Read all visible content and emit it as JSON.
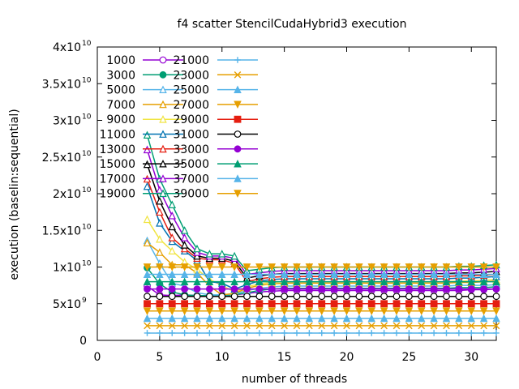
{
  "chart_data": {
    "type": "line",
    "title": "f4 scatter StencilCudaHybrid3 execution",
    "xlabel": "number of threads",
    "ylabel": "execution (baselin:sequential)",
    "xlim": [
      0,
      32
    ],
    "ylim": [
      0,
      40000000000
    ],
    "x_ticks": [
      0,
      5,
      10,
      15,
      20,
      25,
      30
    ],
    "y_ticks": [
      {
        "value": 0,
        "mantissa": "0",
        "exp": ""
      },
      {
        "value": 5000000000,
        "mantissa": "5x10",
        "exp": "9"
      },
      {
        "value": 10000000000,
        "mantissa": "1x10",
        "exp": "10"
      },
      {
        "value": 15000000000,
        "mantissa": "1.5x10",
        "exp": "10"
      },
      {
        "value": 20000000000,
        "mantissa": "2x10",
        "exp": "10"
      },
      {
        "value": 25000000000,
        "mantissa": "2.5x10",
        "exp": "10"
      },
      {
        "value": 30000000000,
        "mantissa": "3x10",
        "exp": "10"
      },
      {
        "value": 35000000000,
        "mantissa": "3.5x10",
        "exp": "10"
      },
      {
        "value": 40000000000,
        "mantissa": "4x10",
        "exp": "10"
      }
    ],
    "legend_position": "top-left",
    "grid": false,
    "x": [
      4,
      5,
      6,
      7,
      8,
      9,
      10,
      11,
      12,
      13,
      14,
      15,
      16,
      17,
      18,
      19,
      20,
      21,
      22,
      23,
      24,
      25,
      26,
      27,
      28,
      29,
      30,
      31,
      32
    ],
    "series": [
      {
        "name": "1000",
        "color": "#9400d3",
        "marker": "circle-open",
        "values": [
          0.74,
          0.62,
          0.61,
          0.62,
          0.61,
          0.61,
          0.62,
          0.62,
          0.64,
          0.66,
          0.67,
          0.68,
          0.68,
          0.68,
          0.68,
          0.68,
          0.68,
          0.68,
          0.68,
          0.68,
          0.68,
          0.68,
          0.68,
          0.68,
          0.68,
          0.68,
          0.69,
          0.69,
          0.7
        ]
      },
      {
        "name": "3000",
        "color": "#009e73",
        "marker": "circle",
        "values": [
          0.99,
          0.77,
          0.66,
          0.62,
          0.61,
          0.61,
          0.61,
          0.62,
          0.65,
          0.68,
          0.7,
          0.71,
          0.71,
          0.71,
          0.71,
          0.71,
          0.71,
          0.71,
          0.71,
          0.71,
          0.71,
          0.71,
          0.71,
          0.71,
          0.71,
          0.72,
          0.72,
          0.72,
          0.73
        ]
      },
      {
        "name": "5000",
        "color": "#56b4e9",
        "marker": "triangle-open",
        "values": [
          1.36,
          1.05,
          0.78,
          0.74,
          0.65,
          0.62,
          0.62,
          0.63,
          0.68,
          0.71,
          0.73,
          0.74,
          0.74,
          0.74,
          0.74,
          0.74,
          0.74,
          0.74,
          0.74,
          0.74,
          0.74,
          0.74,
          0.74,
          0.74,
          0.74,
          0.75,
          0.75,
          0.75,
          0.76
        ]
      },
      {
        "name": "7000",
        "color": "#e69f00",
        "marker": "triangle-open",
        "values": [
          1.33,
          1.2,
          1.03,
          1.03,
          0.92,
          0.74,
          0.62,
          0.64,
          0.71,
          0.75,
          0.77,
          0.78,
          0.78,
          0.78,
          0.78,
          0.78,
          0.78,
          0.78,
          0.78,
          0.78,
          0.78,
          0.78,
          0.78,
          0.78,
          0.78,
          0.79,
          0.79,
          0.8,
          0.81
        ]
      },
      {
        "name": "9000",
        "color": "#f0e442",
        "marker": "triangle-open",
        "values": [
          1.65,
          1.38,
          1.22,
          1.07,
          0.97,
          0.83,
          0.75,
          0.66,
          0.73,
          0.77,
          0.79,
          0.8,
          0.8,
          0.8,
          0.8,
          0.8,
          0.8,
          0.8,
          0.8,
          0.8,
          0.8,
          0.8,
          0.8,
          0.8,
          0.8,
          0.81,
          0.81,
          0.82,
          0.83
        ]
      },
      {
        "name": "11000",
        "color": "#0072b2",
        "marker": "triangle-open",
        "values": [
          2.1,
          1.6,
          1.35,
          1.22,
          1.09,
          0.8,
          0.78,
          0.7,
          0.76,
          0.81,
          0.83,
          0.84,
          0.84,
          0.84,
          0.84,
          0.84,
          0.84,
          0.84,
          0.84,
          0.84,
          0.84,
          0.84,
          0.84,
          0.84,
          0.84,
          0.85,
          0.85,
          0.86,
          0.87
        ]
      },
      {
        "name": "13000",
        "color": "#e51e10",
        "marker": "triangle-open",
        "values": [
          2.2,
          1.75,
          1.4,
          1.25,
          1.12,
          1.1,
          1.1,
          1.05,
          0.8,
          0.84,
          0.86,
          0.87,
          0.87,
          0.87,
          0.87,
          0.87,
          0.87,
          0.87,
          0.87,
          0.87,
          0.87,
          0.87,
          0.87,
          0.87,
          0.87,
          0.88,
          0.88,
          0.89,
          0.9
        ]
      },
      {
        "name": "15000",
        "color": "#000000",
        "marker": "triangle-open",
        "values": [
          2.4,
          1.9,
          1.55,
          1.3,
          1.15,
          1.12,
          1.12,
          1.08,
          0.85,
          0.88,
          0.9,
          0.91,
          0.91,
          0.91,
          0.91,
          0.91,
          0.91,
          0.91,
          0.91,
          0.91,
          0.91,
          0.91,
          0.91,
          0.91,
          0.91,
          0.92,
          0.92,
          0.93,
          0.94
        ]
      },
      {
        "name": "17000",
        "color": "#9400d3",
        "marker": "triangle-open",
        "values": [
          2.6,
          2.05,
          1.7,
          1.4,
          1.2,
          1.15,
          1.15,
          1.12,
          0.9,
          0.92,
          0.94,
          0.95,
          0.95,
          0.95,
          0.95,
          0.95,
          0.95,
          0.95,
          0.95,
          0.95,
          0.95,
          0.95,
          0.95,
          0.95,
          0.95,
          0.96,
          0.96,
          0.97,
          0.98
        ]
      },
      {
        "name": "19000",
        "color": "#009e73",
        "marker": "triangle-open",
        "values": [
          2.8,
          2.2,
          1.85,
          1.5,
          1.25,
          1.18,
          1.18,
          1.15,
          0.95,
          0.97,
          0.99,
          1.0,
          1.0,
          1.0,
          1.0,
          1.0,
          1.0,
          1.0,
          1.0,
          1.0,
          1.0,
          1.0,
          1.0,
          1.0,
          1.0,
          1.01,
          1.01,
          1.02,
          1.03
        ]
      },
      {
        "name": "21000",
        "color": "#56b4e9",
        "marker": "plus",
        "values": [
          0.1,
          0.1,
          0.1,
          0.1,
          0.1,
          0.1,
          0.1,
          0.1,
          0.1,
          0.1,
          0.1,
          0.1,
          0.1,
          0.1,
          0.1,
          0.1,
          0.1,
          0.1,
          0.1,
          0.1,
          0.1,
          0.1,
          0.1,
          0.1,
          0.1,
          0.1,
          0.1,
          0.1,
          0.1
        ]
      },
      {
        "name": "23000",
        "color": "#e69f00",
        "marker": "cross",
        "values": [
          0.2,
          0.2,
          0.2,
          0.2,
          0.2,
          0.2,
          0.2,
          0.2,
          0.2,
          0.2,
          0.2,
          0.2,
          0.2,
          0.2,
          0.2,
          0.2,
          0.2,
          0.2,
          0.2,
          0.2,
          0.2,
          0.2,
          0.2,
          0.2,
          0.2,
          0.2,
          0.2,
          0.2,
          0.2
        ]
      },
      {
        "name": "25000",
        "color": "#56b4e9",
        "marker": "triangle",
        "values": [
          0.3,
          0.3,
          0.3,
          0.3,
          0.3,
          0.3,
          0.3,
          0.3,
          0.3,
          0.3,
          0.3,
          0.3,
          0.3,
          0.3,
          0.3,
          0.3,
          0.3,
          0.3,
          0.3,
          0.3,
          0.3,
          0.3,
          0.3,
          0.3,
          0.3,
          0.3,
          0.3,
          0.3,
          0.3
        ]
      },
      {
        "name": "27000",
        "color": "#e69f00",
        "marker": "triangle-down",
        "values": [
          0.4,
          0.4,
          0.4,
          0.4,
          0.4,
          0.4,
          0.4,
          0.4,
          0.4,
          0.4,
          0.4,
          0.4,
          0.4,
          0.4,
          0.4,
          0.4,
          0.4,
          0.4,
          0.4,
          0.4,
          0.4,
          0.4,
          0.4,
          0.4,
          0.4,
          0.4,
          0.4,
          0.4,
          0.4
        ]
      },
      {
        "name": "29000",
        "color": "#e51e10",
        "marker": "square",
        "values": [
          0.5,
          0.5,
          0.5,
          0.5,
          0.5,
          0.5,
          0.5,
          0.5,
          0.5,
          0.5,
          0.5,
          0.5,
          0.5,
          0.5,
          0.5,
          0.5,
          0.5,
          0.5,
          0.5,
          0.5,
          0.5,
          0.5,
          0.5,
          0.5,
          0.5,
          0.5,
          0.5,
          0.5,
          0.5
        ]
      },
      {
        "name": "31000",
        "color": "#000000",
        "marker": "circle-open",
        "values": [
          0.6,
          0.6,
          0.6,
          0.6,
          0.6,
          0.6,
          0.6,
          0.6,
          0.6,
          0.6,
          0.6,
          0.6,
          0.6,
          0.6,
          0.6,
          0.6,
          0.6,
          0.6,
          0.6,
          0.6,
          0.6,
          0.6,
          0.6,
          0.6,
          0.6,
          0.6,
          0.6,
          0.6,
          0.6
        ]
      },
      {
        "name": "33000",
        "color": "#9400d3",
        "marker": "circle",
        "values": [
          0.7,
          0.7,
          0.7,
          0.7,
          0.7,
          0.7,
          0.7,
          0.7,
          0.7,
          0.7,
          0.7,
          0.7,
          0.7,
          0.7,
          0.7,
          0.7,
          0.7,
          0.7,
          0.7,
          0.7,
          0.7,
          0.7,
          0.7,
          0.7,
          0.7,
          0.7,
          0.7,
          0.7,
          0.7
        ]
      },
      {
        "name": "35000",
        "color": "#009e73",
        "marker": "triangle",
        "values": [
          0.8,
          0.8,
          0.8,
          0.8,
          0.8,
          0.8,
          0.8,
          0.8,
          0.8,
          0.8,
          0.8,
          0.8,
          0.8,
          0.8,
          0.8,
          0.8,
          0.8,
          0.8,
          0.8,
          0.8,
          0.8,
          0.8,
          0.8,
          0.8,
          0.8,
          0.8,
          0.8,
          0.8,
          0.8
        ]
      },
      {
        "name": "37000",
        "color": "#56b4e9",
        "marker": "triangle",
        "values": [
          0.9,
          0.9,
          0.9,
          0.9,
          0.9,
          0.9,
          0.9,
          0.9,
          0.9,
          0.9,
          0.9,
          0.9,
          0.9,
          0.9,
          0.9,
          0.9,
          0.9,
          0.9,
          0.9,
          0.9,
          0.9,
          0.9,
          0.9,
          0.9,
          0.9,
          0.9,
          0.9,
          0.9,
          0.9
        ]
      },
      {
        "name": "39000",
        "color": "#e69f00",
        "marker": "triangle-down",
        "values": [
          1.0,
          1.0,
          1.0,
          1.0,
          1.0,
          1.0,
          1.0,
          1.0,
          1.0,
          1.0,
          1.0,
          1.0,
          1.0,
          1.0,
          1.0,
          1.0,
          1.0,
          1.0,
          1.0,
          1.0,
          1.0,
          1.0,
          1.0,
          1.0,
          1.0,
          1.0,
          1.0,
          1.0,
          1.0
        ]
      }
    ]
  }
}
